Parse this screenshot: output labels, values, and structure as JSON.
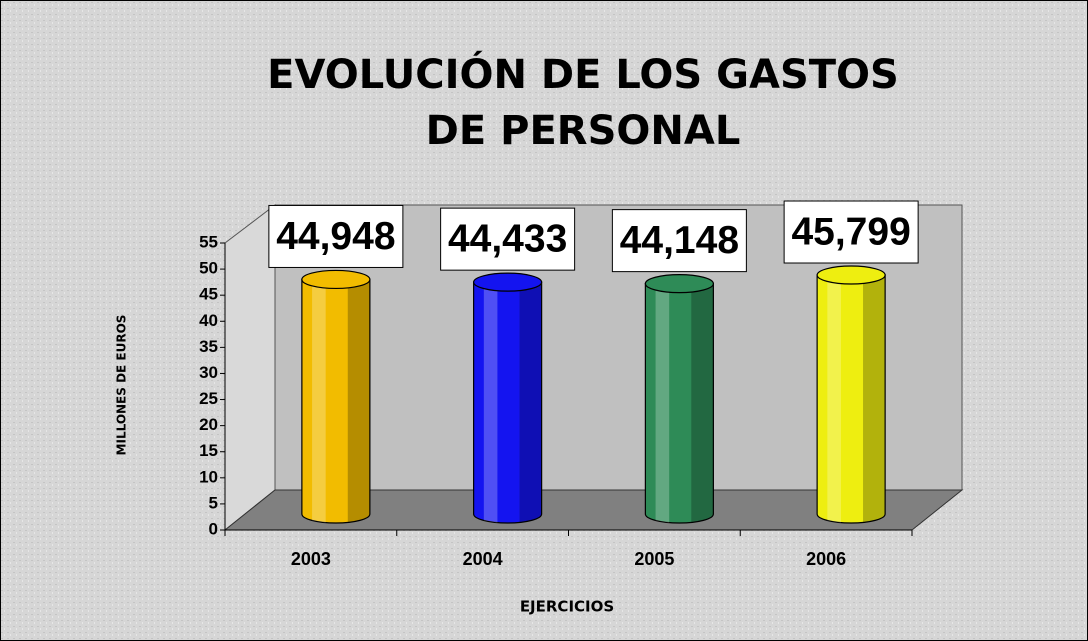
{
  "chart_data": {
    "type": "bar3d",
    "title": [
      "EVOLUCIÓN DE LOS GASTOS",
      "DE PERSONAL"
    ],
    "x_label": "EJERCICIOS",
    "y_label": "MILLONES DE EUROS",
    "categories": [
      "2003",
      "2004",
      "2005",
      "2006"
    ],
    "values": [
      44.948,
      44.433,
      44.148,
      45.799
    ],
    "value_labels": [
      "44,948",
      "44,433",
      "44,148",
      "45,799"
    ],
    "colors": [
      "#f2bc00",
      "#1414f0",
      "#2e8b57",
      "#eeee10"
    ],
    "ylim": [
      0,
      55
    ],
    "yticks": [
      0,
      5,
      10,
      15,
      20,
      25,
      30,
      35,
      40,
      45,
      50,
      55
    ]
  }
}
